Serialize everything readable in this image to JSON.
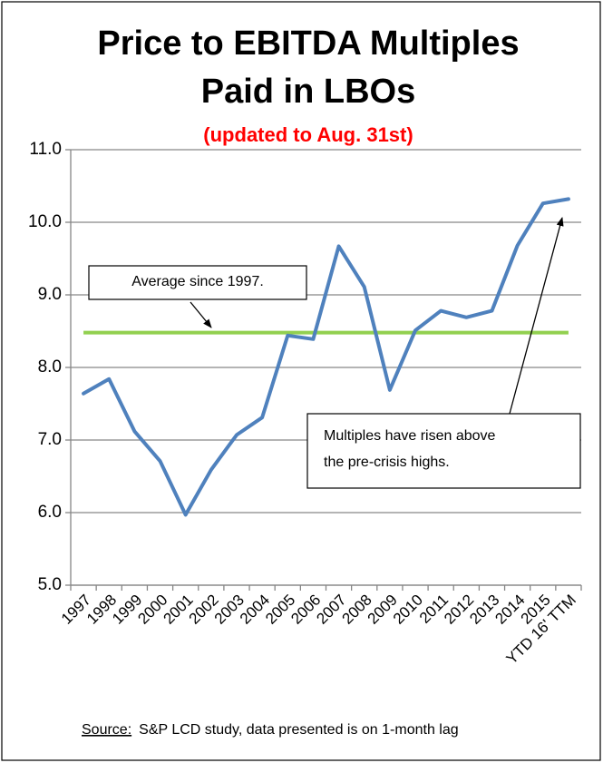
{
  "chart_data": {
    "type": "line",
    "title": [
      "Price to EBITDA Multiples",
      "Paid in LBOs"
    ],
    "subtitle": "(updated to Aug. 31st)",
    "categories": [
      "1997",
      "1998",
      "1999",
      "2000",
      "2001",
      "2002",
      "2003",
      "2004",
      "2005",
      "2006",
      "2007",
      "2008",
      "2009",
      "2010",
      "2011",
      "2012",
      "2013",
      "2014",
      "2015",
      "YTD 16' TTM"
    ],
    "values": [
      7.64,
      7.84,
      7.12,
      6.71,
      5.97,
      6.59,
      7.07,
      7.31,
      8.44,
      8.39,
      9.67,
      9.11,
      7.69,
      8.51,
      8.78,
      8.69,
      8.78,
      9.68,
      10.26,
      10.32
    ],
    "color": "#4f81bd",
    "reference_line": {
      "value": 8.48,
      "color": "#92d050"
    },
    "ylim": [
      5,
      11
    ],
    "yticks": [
      {
        "value": 5,
        "label": "5.0"
      },
      {
        "value": 6,
        "label": "6.0"
      },
      {
        "value": 7,
        "label": "7.0"
      },
      {
        "value": 8,
        "label": "8.0"
      },
      {
        "value": 9,
        "label": "9.0"
      },
      {
        "value": 10,
        "label": "10.0"
      },
      {
        "value": 11,
        "label": "11.0"
      }
    ],
    "grid": true,
    "annotations": [
      {
        "text": "Average since 1997."
      },
      {
        "lines": [
          "Multiples have risen above",
          "the pre-crisis highs."
        ]
      }
    ],
    "source_label": "Source:",
    "source_text": "S&P LCD study, data presented is on 1-month lag"
  }
}
